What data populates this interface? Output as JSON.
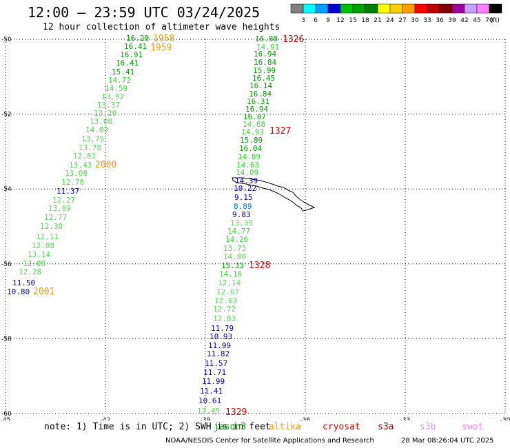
{
  "header": {
    "title": "12:00 — 23:59 UTC 03/24/2025",
    "subtitle": "12 hour collection of altimeter wave heights"
  },
  "colorbar": {
    "unit": "(ft)",
    "labels": [
      "3",
      "6",
      "9",
      "12",
      "15",
      "18",
      "21",
      "24",
      "27",
      "30",
      "33",
      "36",
      "39",
      "42",
      "45",
      "70"
    ],
    "colors": [
      "#808080",
      "#00ffff",
      "#00a0ff",
      "#0000d0",
      "#00c000",
      "#00a000",
      "#008000",
      "#ffff00",
      "#ffd000",
      "#ffa000",
      "#ff0000",
      "#c00000",
      "#800000",
      "#a000a0",
      "#c8a0ff",
      "#ff80ff",
      "#000000"
    ]
  },
  "map": {
    "lat_ticks": [
      "-50",
      "-52",
      "-54",
      "-56",
      "-58",
      "-60"
    ],
    "lon_ticks": [
      "-45",
      "-42",
      "-39",
      "-36",
      "-33",
      "-30"
    ],
    "tracks": [
      {
        "name": "left-track",
        "points": [
          {
            "v": "16.20",
            "c": "#00a000"
          },
          {
            "v": "16.41",
            "c": "#00a000"
          },
          {
            "v": "16.91",
            "c": "#00a000"
          },
          {
            "v": "16.41",
            "c": "#00a000"
          },
          {
            "v": "15.41",
            "c": "#00a000"
          },
          {
            "v": "14.72",
            "c": "#33dd33"
          },
          {
            "v": "14.59",
            "c": "#33dd33"
          },
          {
            "v": "13.92",
            "c": "#55dd55"
          },
          {
            "v": "13.37",
            "c": "#55dd55"
          },
          {
            "v": "13.20",
            "c": "#55dd55"
          },
          {
            "v": "13.08",
            "c": "#55dd55"
          },
          {
            "v": "14.03",
            "c": "#33dd33"
          },
          {
            "v": "13.75",
            "c": "#55dd55"
          },
          {
            "v": "13.78",
            "c": "#55dd55"
          },
          {
            "v": "12.81",
            "c": "#55dd55"
          },
          {
            "v": "13.43",
            "c": "#55dd55"
          },
          {
            "v": "13.08",
            "c": "#55dd55"
          },
          {
            "v": "12.78",
            "c": "#55dd55"
          },
          {
            "v": "11.37",
            "c": "#0000c0"
          },
          {
            "v": "12.27",
            "c": "#55dd55"
          },
          {
            "v": "13.09",
            "c": "#55dd55"
          },
          {
            "v": "12.77",
            "c": "#55dd55"
          },
          {
            "v": "12.30",
            "c": "#55dd55"
          },
          {
            "v": "12.11",
            "c": "#55dd55"
          },
          {
            "v": "12.88",
            "c": "#55dd55"
          },
          {
            "v": "13.14",
            "c": "#55dd55"
          },
          {
            "v": "12.08",
            "c": "#55dd55"
          },
          {
            "v": "12.28",
            "c": "#55dd55"
          },
          {
            "v": "11.50",
            "c": "#0000c0"
          },
          {
            "v": "10.80",
            "c": "#0000c0"
          }
        ]
      },
      {
        "name": "right-track",
        "points": [
          {
            "v": "16.88",
            "c": "#00a000"
          },
          {
            "v": "14.91",
            "c": "#33dd33"
          },
          {
            "v": "16.94",
            "c": "#00a000"
          },
          {
            "v": "16.84",
            "c": "#00a000"
          },
          {
            "v": "15.99",
            "c": "#00a000"
          },
          {
            "v": "16.45",
            "c": "#00a000"
          },
          {
            "v": "16.14",
            "c": "#00a000"
          },
          {
            "v": "16.84",
            "c": "#00a000"
          },
          {
            "v": "16.31",
            "c": "#00a000"
          },
          {
            "v": "16.94",
            "c": "#00a000"
          },
          {
            "v": "16.07",
            "c": "#00a000"
          },
          {
            "v": "14.68",
            "c": "#33dd33"
          },
          {
            "v": "14.93",
            "c": "#33dd33"
          },
          {
            "v": "15.89",
            "c": "#00a000"
          },
          {
            "v": "16.04",
            "c": "#00a000"
          },
          {
            "v": "14.89",
            "c": "#33dd33"
          },
          {
            "v": "14.63",
            "c": "#33dd33"
          },
          {
            "v": "14.09",
            "c": "#33dd33"
          },
          {
            "v": "14.39",
            "c": "#0000c0"
          },
          {
            "v": "10.22",
            "c": "#0000c0"
          },
          {
            "v": "9.15",
            "c": "#0000c0"
          },
          {
            "v": "8.89",
            "c": "#0080ff"
          },
          {
            "v": "9.83",
            "c": "#0000c0"
          },
          {
            "v": "13.39",
            "c": "#55dd55"
          },
          {
            "v": "14.77",
            "c": "#33dd33"
          },
          {
            "v": "14.26",
            "c": "#33dd33"
          },
          {
            "v": "13.73",
            "c": "#55dd55"
          },
          {
            "v": "14.80",
            "c": "#55dd55"
          },
          {
            "v": "15.33",
            "c": "#00a000"
          },
          {
            "v": "14.16",
            "c": "#33dd33"
          },
          {
            "v": "12.14",
            "c": "#55dd55"
          },
          {
            "v": "12.67",
            "c": "#55dd55"
          },
          {
            "v": "12.63",
            "c": "#55dd55"
          },
          {
            "v": "12.72",
            "c": "#55dd55"
          },
          {
            "v": "12.83",
            "c": "#55dd55"
          },
          {
            "v": "11.79",
            "c": "#0000c0"
          },
          {
            "v": "10.93",
            "c": "#0000c0"
          },
          {
            "v": "11.99",
            "c": "#0000c0"
          },
          {
            "v": "11.82",
            "c": "#0000c0"
          },
          {
            "v": "11.57",
            "c": "#0000c0"
          },
          {
            "v": "11.71",
            "c": "#0000c0"
          },
          {
            "v": "11.99",
            "c": "#0000c0"
          },
          {
            "v": "11.41",
            "c": "#0000c0"
          },
          {
            "v": "10.61",
            "c": "#0000c0"
          },
          {
            "v": "12.45",
            "c": "#55dd55"
          }
        ]
      }
    ],
    "time_labels": [
      {
        "t": "1958",
        "c": "#ff9900"
      },
      {
        "t": "1959",
        "c": "#ff9900"
      },
      {
        "t": "2000",
        "c": "#ff9900"
      },
      {
        "t": "2001",
        "c": "#ff9900"
      },
      {
        "t": "1326",
        "c": "#dd0000"
      },
      {
        "t": "1327",
        "c": "#dd0000"
      },
      {
        "t": "1328",
        "c": "#dd0000"
      },
      {
        "t": "1329",
        "c": "#dd0000"
      }
    ]
  },
  "footer": {
    "note": "note: 1) Time is in UTC; 2) SWH is in feet",
    "legend": [
      {
        "name": "jason3",
        "label": "jason3",
        "color": "#00aa00"
      },
      {
        "name": "altika",
        "label": "altika",
        "color": "#ff9900"
      },
      {
        "name": "cryosat",
        "label": "cryosat",
        "color": "#dd0000"
      },
      {
        "name": "s3a",
        "label": "s3a",
        "color": "#aa0000"
      },
      {
        "name": "s3b",
        "label": "s3b",
        "color": "#c8a0ff"
      },
      {
        "name": "swot",
        "label": "swot",
        "color": "#ff80ff"
      }
    ],
    "credit": "NOAA/NESDIS Center for Satellite Applications and Research",
    "date": "28 Mar 08:26:04 UTC 2025"
  }
}
